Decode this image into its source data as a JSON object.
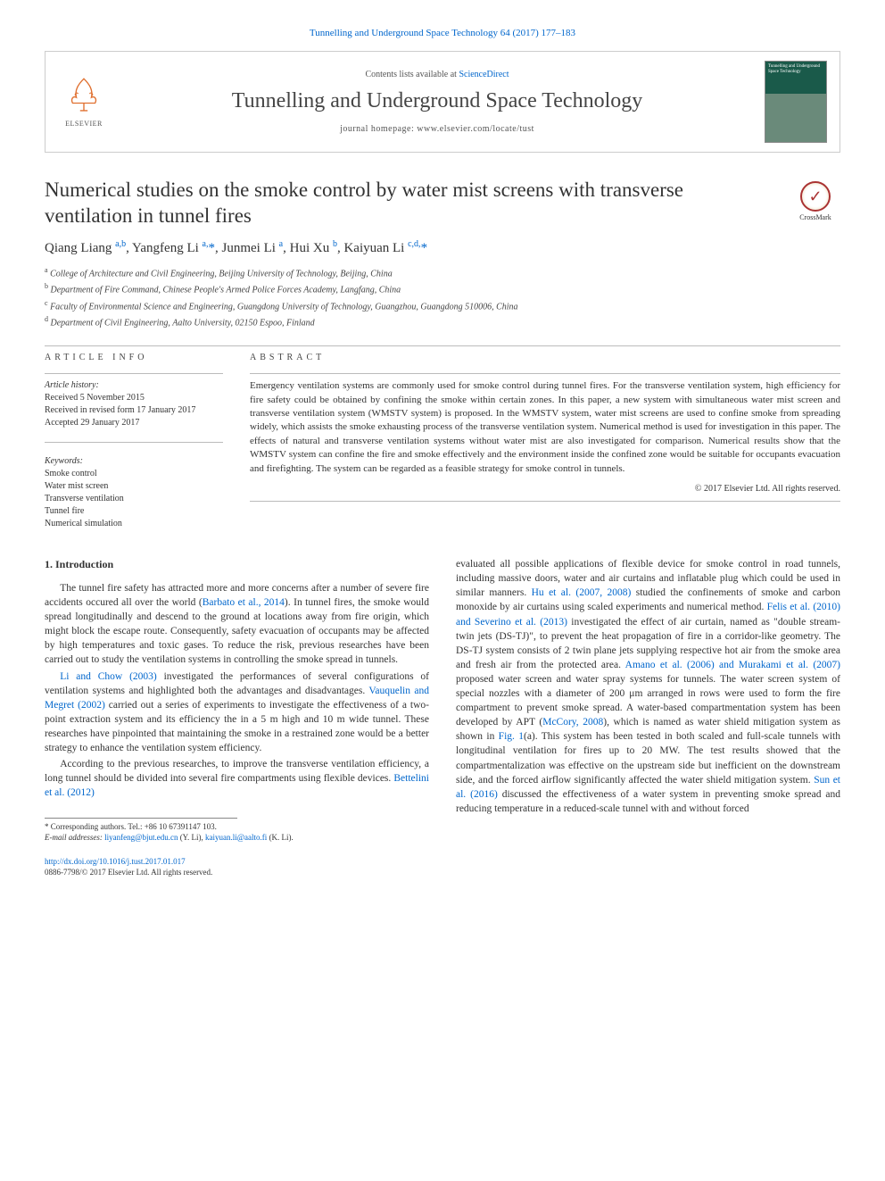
{
  "journal_ref": {
    "text": "Tunnelling and Underground Space Technology 64 (2017) 177–183",
    "link_color": "#0066cc"
  },
  "header": {
    "contents_prefix": "Contents lists available at ",
    "contents_link": "ScienceDirect",
    "journal_title": "Tunnelling and Underground Space Technology",
    "homepage_prefix": "journal homepage: ",
    "homepage_url": "www.elsevier.com/locate/tust",
    "elsevier_label": "ELSEVIER",
    "cover_title": "Tunnelling and Underground Space Technology"
  },
  "crossmark": {
    "label": "CrossMark"
  },
  "article": {
    "title": "Numerical studies on the smoke control by water mist screens with transverse ventilation in tunnel fires",
    "authors_html": "Qiang Liang <sup>a,b</sup>, Yangfeng Li <sup>a,</sup><span class=\"corr\">*</span>, Junmei Li <sup>a</sup>, Hui Xu <sup>b</sup>, Kaiyuan Li <sup>c,d,</sup><span class=\"corr\">*</span>",
    "affiliations": [
      {
        "sup": "a",
        "text": "College of Architecture and Civil Engineering, Beijing University of Technology, Beijing, China"
      },
      {
        "sup": "b",
        "text": "Department of Fire Command, Chinese People's Armed Police Forces Academy, Langfang, China"
      },
      {
        "sup": "c",
        "text": "Faculty of Environmental Science and Engineering, Guangdong University of Technology, Guangzhou, Guangdong 510006, China"
      },
      {
        "sup": "d",
        "text": "Department of Civil Engineering, Aalto University, 02150 Espoo, Finland"
      }
    ]
  },
  "info": {
    "heading": "ARTICLE INFO",
    "history_label": "Article history:",
    "history": [
      "Received 5 November 2015",
      "Received in revised form 17 January 2017",
      "Accepted 29 January 2017"
    ],
    "keywords_label": "Keywords:",
    "keywords": [
      "Smoke control",
      "Water mist screen",
      "Transverse ventilation",
      "Tunnel fire",
      "Numerical simulation"
    ]
  },
  "abstract": {
    "heading": "ABSTRACT",
    "text": "Emergency ventilation systems are commonly used for smoke control during tunnel fires. For the transverse ventilation system, high efficiency for fire safety could be obtained by confining the smoke within certain zones. In this paper, a new system with simultaneous water mist screen and transverse ventilation system (WMSTV system) is proposed. In the WMSTV system, water mist screens are used to confine smoke from spreading widely, which assists the smoke exhausting process of the transverse ventilation system. Numerical method is used for investigation in this paper. The effects of natural and transverse ventilation systems without water mist are also investigated for comparison. Numerical results show that the WMSTV system can confine the fire and smoke effectively and the environment inside the confined zone would be suitable for occupants evacuation and firefighting. The system can be regarded as a feasible strategy for smoke control in tunnels.",
    "copyright": "© 2017 Elsevier Ltd. All rights reserved."
  },
  "body": {
    "section_heading": "1. Introduction",
    "col1_paras": [
      "The tunnel fire safety has attracted more and more concerns after a number of severe fire accidents occured all over the world (<span class=\"ref-link\">Barbato et al., 2014</span>). In tunnel fires, the smoke would spread longitudinally and descend to the ground at locations away from fire origin, which might block the escape route. Consequently, safety evacuation of occupants may be affected by high temperatures and toxic gases. To reduce the risk, previous researches have been carried out to study the ventilation systems in controlling the smoke spread in tunnels.",
      "<span class=\"ref-link\">Li and Chow (2003)</span> investigated the performances of several configurations of ventilation systems and highlighted both the advantages and disadvantages. <span class=\"ref-link\">Vauquelin and Megret (2002)</span> carried out a series of experiments to investigate the effectiveness of a two-point extraction system and its efficiency the in a 5 m high and 10 m wide tunnel. These researches have pinpointed that maintaining the smoke in a restrained zone would be a better strategy to enhance the ventilation system efficiency.",
      "According to the previous researches, to improve the transverse ventilation efficiency, a long tunnel should be divided into several fire compartments using flexible devices. <span class=\"ref-link\">Bettelini et al. (2012)</span>"
    ],
    "col2_paras": [
      "evaluated all possible applications of flexible device for smoke control in road tunnels, including massive doors, water and air curtains and inflatable plug which could be used in similar manners. <span class=\"ref-link\">Hu et al. (2007, 2008)</span> studied the confinements of smoke and carbon monoxide by air curtains using scaled experiments and numerical method. <span class=\"ref-link\">Felis et al. (2010) and Severino et al. (2013)</span> investigated the effect of air curtain, named as \"double stream-twin jets (DS-TJ)\", to prevent the heat propagation of fire in a corridor-like geometry. The DS-TJ system consists of 2 twin plane jets supplying respective hot air from the smoke area and fresh air from the protected area. <span class=\"ref-link\">Amano et al. (2006) and Murakami et al. (2007)</span> proposed water screen and water spray systems for tunnels. The water screen system of special nozzles with a diameter of 200 μm arranged in rows were used to form the fire compartment to prevent smoke spread. A water-based compartmentation system has been developed by APT (<span class=\"ref-link\">McCory, 2008</span>), which is named as water shield mitigation system as shown in <span class=\"ref-link\">Fig. 1</span>(a). This system has been tested in both scaled and full-scale tunnels with longitudinal ventilation for fires up to 20 MW. The test results showed that the compartmentalization was effective on the upstream side but inefficient on the downstream side, and the forced airflow significantly affected the water shield mitigation system. <span class=\"ref-link\">Sun et al. (2016)</span> discussed the effectiveness of a water system in preventing smoke spread and reducing temperature in a reduced-scale tunnel with and without forced"
    ]
  },
  "footnotes": {
    "corr_line": "* Corresponding authors. Tel.: +86 10 67391147 103.",
    "email_label": "E-mail addresses: ",
    "email1": "liyanfeng@bjut.edu.cn",
    "email1_who": " (Y. Li), ",
    "email2": "kaiyuan.li@aalto.fi",
    "email2_who": " (K. Li)."
  },
  "doi": {
    "url": "http://dx.doi.org/10.1016/j.tust.2017.01.017",
    "issn_line": "0886-7798/© 2017 Elsevier Ltd. All rights reserved."
  },
  "colors": {
    "link": "#0066cc",
    "text": "#333333",
    "border": "#cccccc",
    "cover_top": "#1a5a4a",
    "cover_bottom": "#6a8a7a"
  }
}
